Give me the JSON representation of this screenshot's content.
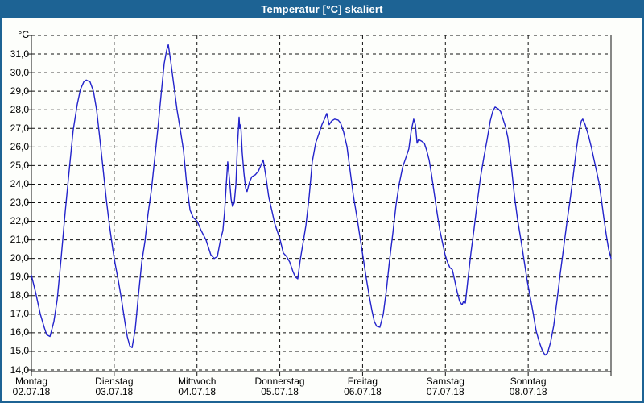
{
  "window": {
    "title": "Temperatur [°C] skaliert"
  },
  "colors": {
    "titlebar": "#1d6394",
    "window_border": "#1d6394",
    "chart_background": "#fdfefb",
    "grid": "#111111",
    "axis": "#111111",
    "line": "#2323cb",
    "text": "#000000",
    "title_text": "#ffffff"
  },
  "chart_data": {
    "type": "line",
    "title": "Temperatur [°C] skaliert",
    "ylabel": "°C",
    "ylim": [
      14,
      32
    ],
    "y_tick_step": 1,
    "y_tick_labels": [
      "31,0",
      "30,0",
      "29,0",
      "28,0",
      "27,0",
      "26,0",
      "25,0",
      "24,0",
      "23,0",
      "22,0",
      "21,0",
      "20,0",
      "19,0",
      "18,0",
      "17,0",
      "16,0",
      "15,0",
      "14,0"
    ],
    "x_unit": "hours since Monday 00:00",
    "xlim": [
      0,
      168
    ],
    "x_day_labels": [
      {
        "name": "Montag",
        "date": "02.07.18"
      },
      {
        "name": "Dienstag",
        "date": "03.07.18"
      },
      {
        "name": "Mittwoch",
        "date": "04.07.18"
      },
      {
        "name": "Donnerstag",
        "date": "05.07.18"
      },
      {
        "name": "Freitag",
        "date": "06.07.18"
      },
      {
        "name": "Samstag",
        "date": "07.07.18"
      },
      {
        "name": "Sonntag",
        "date": "08.07.18"
      }
    ],
    "grid": "dashed",
    "legend": "none",
    "series": [
      {
        "name": "Temperatur [°C]",
        "color": "#2323cb",
        "points": [
          [
            0,
            19.1
          ],
          [
            1.2,
            18.2
          ],
          [
            2.6,
            17.0
          ],
          [
            3.7,
            16.3
          ],
          [
            4.4,
            15.9
          ],
          [
            5.4,
            15.8
          ],
          [
            6.5,
            16.6
          ],
          [
            7.5,
            17.8
          ],
          [
            8.6,
            20.0
          ],
          [
            9.8,
            22.5
          ],
          [
            11,
            24.8
          ],
          [
            12.1,
            26.9
          ],
          [
            13.3,
            28.3
          ],
          [
            14.2,
            29.1
          ],
          [
            15.2,
            29.5
          ],
          [
            15.9,
            29.6
          ],
          [
            17,
            29.5
          ],
          [
            18,
            29.0
          ],
          [
            18.9,
            28.0
          ],
          [
            19.8,
            26.5
          ],
          [
            20.8,
            24.8
          ],
          [
            21.7,
            23.2
          ],
          [
            22.6,
            21.8
          ],
          [
            23.6,
            20.5
          ],
          [
            24.3,
            19.7
          ],
          [
            25.2,
            18.8
          ],
          [
            26.1,
            17.8
          ],
          [
            27.1,
            16.6
          ],
          [
            27.8,
            15.8
          ],
          [
            28.5,
            15.3
          ],
          [
            29.2,
            15.2
          ],
          [
            30.1,
            16.2
          ],
          [
            31,
            18.0
          ],
          [
            32,
            19.8
          ],
          [
            32.9,
            20.9
          ],
          [
            33.8,
            22.4
          ],
          [
            34.8,
            23.7
          ],
          [
            35.7,
            25.3
          ],
          [
            36.6,
            26.9
          ],
          [
            37.6,
            28.8
          ],
          [
            38.5,
            30.5
          ],
          [
            39.2,
            31.2
          ],
          [
            39.7,
            31.5
          ],
          [
            40.4,
            30.6
          ],
          [
            41.3,
            29.3
          ],
          [
            42.2,
            28.0
          ],
          [
            43.2,
            26.9
          ],
          [
            44.1,
            25.8
          ],
          [
            45,
            24.0
          ],
          [
            46,
            22.6
          ],
          [
            46.9,
            22.2
          ],
          [
            48.1,
            22.0
          ],
          [
            49.2,
            21.5
          ],
          [
            50.6,
            21.0
          ],
          [
            52,
            20.2
          ],
          [
            53,
            20.0
          ],
          [
            53.9,
            20.1
          ],
          [
            54.8,
            21.0
          ],
          [
            55.5,
            21.5
          ],
          [
            56,
            22.5
          ],
          [
            56.5,
            24.0
          ],
          [
            56.9,
            25.2
          ],
          [
            57.4,
            24.3
          ],
          [
            57.9,
            23.2
          ],
          [
            58.3,
            22.8
          ],
          [
            58.8,
            23.0
          ],
          [
            59.3,
            24.0
          ],
          [
            59.7,
            26.0
          ],
          [
            60.2,
            27.6
          ],
          [
            60.4,
            27.0
          ],
          [
            60.7,
            27.2
          ],
          [
            61.1,
            25.7
          ],
          [
            61.6,
            24.6
          ],
          [
            62.1,
            23.8
          ],
          [
            62.5,
            23.6
          ],
          [
            63.2,
            24.1
          ],
          [
            63.9,
            24.4
          ],
          [
            64.9,
            24.5
          ],
          [
            65.8,
            24.7
          ],
          [
            66.5,
            25.0
          ],
          [
            67.2,
            25.3
          ],
          [
            67.9,
            24.5
          ],
          [
            68.8,
            23.3
          ],
          [
            69.8,
            22.5
          ],
          [
            70.5,
            21.9
          ],
          [
            71.4,
            21.4
          ],
          [
            72.1,
            21.0
          ],
          [
            73,
            20.3
          ],
          [
            74,
            20.1
          ],
          [
            74.9,
            19.8
          ],
          [
            75.8,
            19.3
          ],
          [
            76.5,
            19.0
          ],
          [
            77.2,
            18.9
          ],
          [
            77.9,
            19.9
          ],
          [
            78.9,
            21.0
          ],
          [
            79.6,
            21.8
          ],
          [
            80.5,
            23.3
          ],
          [
            81.4,
            25.2
          ],
          [
            82.4,
            26.2
          ],
          [
            83.3,
            26.7
          ],
          [
            84.2,
            27.2
          ],
          [
            85.2,
            27.6
          ],
          [
            85.6,
            27.8
          ],
          [
            86.3,
            27.2
          ],
          [
            87,
            27.4
          ],
          [
            87.9,
            27.5
          ],
          [
            88.9,
            27.45
          ],
          [
            89.6,
            27.3
          ],
          [
            90.5,
            26.8
          ],
          [
            91.5,
            26.0
          ],
          [
            92.4,
            24.7
          ],
          [
            93.3,
            23.4
          ],
          [
            94.3,
            22.3
          ],
          [
            95.2,
            21.2
          ],
          [
            96.1,
            20.1
          ],
          [
            97.1,
            18.9
          ],
          [
            98,
            17.9
          ],
          [
            98.7,
            17.2
          ],
          [
            99.4,
            16.6
          ],
          [
            100.1,
            16.35
          ],
          [
            101,
            16.3
          ],
          [
            102,
            17.0
          ],
          [
            102.9,
            18.3
          ],
          [
            103.8,
            19.9
          ],
          [
            104.8,
            21.4
          ],
          [
            105.7,
            22.9
          ],
          [
            106.6,
            24.0
          ],
          [
            107.6,
            24.9
          ],
          [
            108.5,
            25.4
          ],
          [
            109.4,
            25.9
          ],
          [
            110.1,
            26.9
          ],
          [
            110.8,
            27.5
          ],
          [
            111.3,
            27.2
          ],
          [
            111.8,
            26.2
          ],
          [
            112.2,
            26.4
          ],
          [
            113.2,
            26.3
          ],
          [
            113.9,
            26.2
          ],
          [
            114.6,
            25.8
          ],
          [
            115.3,
            25.3
          ],
          [
            116,
            24.5
          ],
          [
            116.7,
            23.6
          ],
          [
            117.4,
            22.7
          ],
          [
            118.3,
            21.6
          ],
          [
            119.2,
            20.8
          ],
          [
            119.9,
            20.2
          ],
          [
            120.6,
            19.8
          ],
          [
            121.3,
            19.5
          ],
          [
            122,
            19.4
          ],
          [
            122.7,
            18.8
          ],
          [
            123.4,
            18.2
          ],
          [
            124.1,
            17.7
          ],
          [
            124.8,
            17.5
          ],
          [
            125.3,
            17.7
          ],
          [
            125.8,
            17.6
          ],
          [
            126.5,
            18.8
          ],
          [
            127.4,
            20.3
          ],
          [
            128.3,
            21.6
          ],
          [
            129.3,
            23.1
          ],
          [
            130.2,
            24.4
          ],
          [
            131.1,
            25.4
          ],
          [
            132.1,
            26.4
          ],
          [
            133,
            27.4
          ],
          [
            133.7,
            27.9
          ],
          [
            134.4,
            28.15
          ],
          [
            135.3,
            28.05
          ],
          [
            136,
            27.9
          ],
          [
            136.7,
            27.5
          ],
          [
            137.4,
            27.1
          ],
          [
            138.1,
            26.5
          ],
          [
            139.1,
            25.0
          ],
          [
            140,
            23.4
          ],
          [
            140.9,
            22.1
          ],
          [
            141.9,
            21.0
          ],
          [
            142.8,
            19.9
          ],
          [
            143.7,
            18.8
          ],
          [
            144.4,
            18.1
          ],
          [
            145.4,
            17.1
          ],
          [
            146.3,
            16.1
          ],
          [
            147.2,
            15.5
          ],
          [
            148.2,
            15.0
          ],
          [
            148.9,
            14.8
          ],
          [
            149.6,
            14.9
          ],
          [
            150.5,
            15.5
          ],
          [
            151.4,
            16.4
          ],
          [
            152.4,
            17.8
          ],
          [
            153.3,
            19.2
          ],
          [
            154.2,
            20.5
          ],
          [
            155.2,
            21.9
          ],
          [
            156.1,
            23.1
          ],
          [
            157,
            24.4
          ],
          [
            158,
            25.9
          ],
          [
            158.7,
            26.8
          ],
          [
            159.4,
            27.4
          ],
          [
            159.8,
            27.5
          ],
          [
            160.5,
            27.2
          ],
          [
            161.5,
            26.6
          ],
          [
            162.4,
            25.9
          ],
          [
            163.1,
            25.3
          ],
          [
            163.8,
            24.7
          ],
          [
            164.5,
            24.1
          ],
          [
            165.2,
            23.2
          ],
          [
            165.9,
            22.2
          ],
          [
            166.6,
            21.3
          ],
          [
            167.3,
            20.5
          ],
          [
            168,
            20.0
          ]
        ]
      }
    ]
  }
}
